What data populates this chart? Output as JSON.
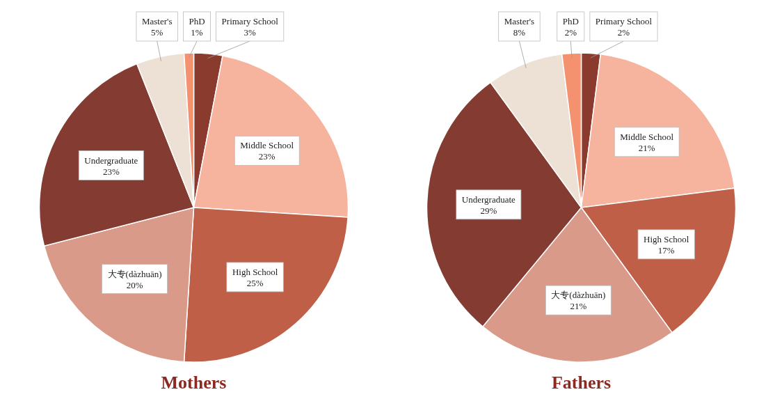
{
  "chart_data": [
    {
      "type": "pie",
      "title": "Mothers",
      "categories": [
        "Primary School",
        "Middle School",
        "High School",
        "大专(dàzhuān)",
        "Undergraduate",
        "Master's",
        "PhD"
      ],
      "values": [
        3,
        23,
        25,
        20,
        23,
        5,
        1
      ],
      "value_labels": [
        "3%",
        "23%",
        "25%",
        "20%",
        "23%",
        "5%",
        "1%"
      ],
      "colors": [
        "#8b3a2e",
        "#f6b39e",
        "#bf5f48",
        "#d99a8a",
        "#843c32",
        "#ede0d5",
        "#f4916e"
      ]
    },
    {
      "type": "pie",
      "title": "Fathers",
      "categories": [
        "Primary School",
        "Middle School",
        "High School",
        "大专(dàzhuān)",
        "Undergraduate",
        "Master's",
        "PhD"
      ],
      "values": [
        2,
        21,
        17,
        21,
        29,
        8,
        2
      ],
      "value_labels": [
        "2%",
        "21%",
        "17%",
        "21%",
        "29%",
        "8%",
        "2%"
      ],
      "colors": [
        "#8b3a2e",
        "#f6b39e",
        "#bf5f48",
        "#d99a8a",
        "#843c32",
        "#ede0d5",
        "#f4916e"
      ]
    }
  ]
}
